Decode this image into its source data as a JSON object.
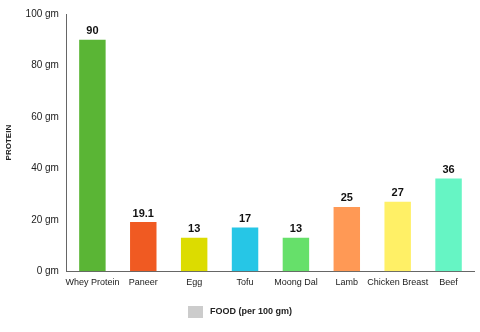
{
  "chart_data": {
    "type": "bar",
    "categories": [
      "Whey Protein",
      "Paneer",
      "Egg",
      "Tofu",
      "Moong Dal",
      "Lamb",
      "Chicken Breast",
      "Beef"
    ],
    "values": [
      90,
      19.1,
      13,
      17,
      13,
      25,
      27,
      36
    ],
    "colors": [
      "#5ab535",
      "#f05a22",
      "#dcdc00",
      "#26c6e6",
      "#66e06a",
      "#ff9955",
      "#fff066",
      "#66f5c4"
    ],
    "y_label": "PROTEIN",
    "x_label": "FOOD (per 100 gm)",
    "ylim": [
      0,
      100
    ],
    "yticks": [
      {
        "value": 0,
        "label": "0 gm"
      },
      {
        "value": 20,
        "label": "20 gm"
      },
      {
        "value": 40,
        "label": "40 gm"
      },
      {
        "value": 60,
        "label": "60 gm"
      },
      {
        "value": 80,
        "label": "80 gm"
      },
      {
        "value": 100,
        "label": "100 gm"
      }
    ],
    "grid": false,
    "data_labels": true
  }
}
